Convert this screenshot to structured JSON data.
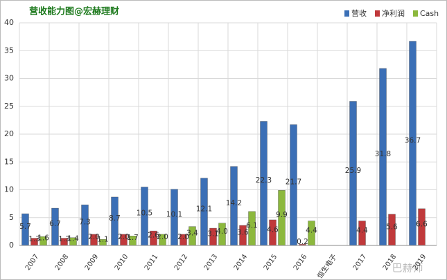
{
  "chart_data": {
    "type": "bar",
    "title": "营收能力图@宏赫理财",
    "watermark": "巴赫师",
    "categories": [
      "2007",
      "2008",
      "2009",
      "2010",
      "2011",
      "2012",
      "2013",
      "2014",
      "2015",
      "2016",
      "恒生电子",
      "2017",
      "2018",
      "2019"
    ],
    "series": [
      {
        "name": "营收",
        "color": "#3b6fb6",
        "values": [
          5.7,
          6.7,
          7.3,
          8.7,
          10.5,
          10.1,
          12.1,
          14.2,
          22.3,
          21.7,
          null,
          25.9,
          31.8,
          36.7
        ]
      },
      {
        "name": "净利润",
        "color": "#c0393b",
        "values": [
          1.3,
          1.3,
          2.0,
          2.0,
          2.6,
          2.0,
          3.1,
          3.6,
          4.6,
          0.2,
          null,
          4.4,
          5.6,
          6.6
        ],
        "value_labels": [
          "1.3",
          "1.3",
          "2.0",
          "2.0",
          "2.6",
          "2.0",
          "3.1",
          "3.6",
          "4.6",
          "0.2",
          null,
          "4.4",
          "5.6",
          "6.6"
        ]
      },
      {
        "name": "Cash",
        "color": "#8cb83d",
        "values": [
          1.6,
          1.4,
          1.1,
          1.7,
          2.0,
          3.4,
          4.0,
          6.1,
          9.9,
          4.4,
          null,
          null,
          null,
          null
        ],
        "value_labels": [
          "1.6",
          "1.4",
          "1.1",
          "1.7",
          "2.0",
          "3.4",
          "4.0",
          "6.1",
          "9.9",
          "4.4",
          null,
          null,
          null,
          null
        ]
      }
    ],
    "ylim": [
      0,
      40
    ],
    "yticks": [
      0,
      5,
      10,
      15,
      20,
      25,
      30,
      35,
      40
    ],
    "grid": true,
    "legend": "top-right"
  }
}
